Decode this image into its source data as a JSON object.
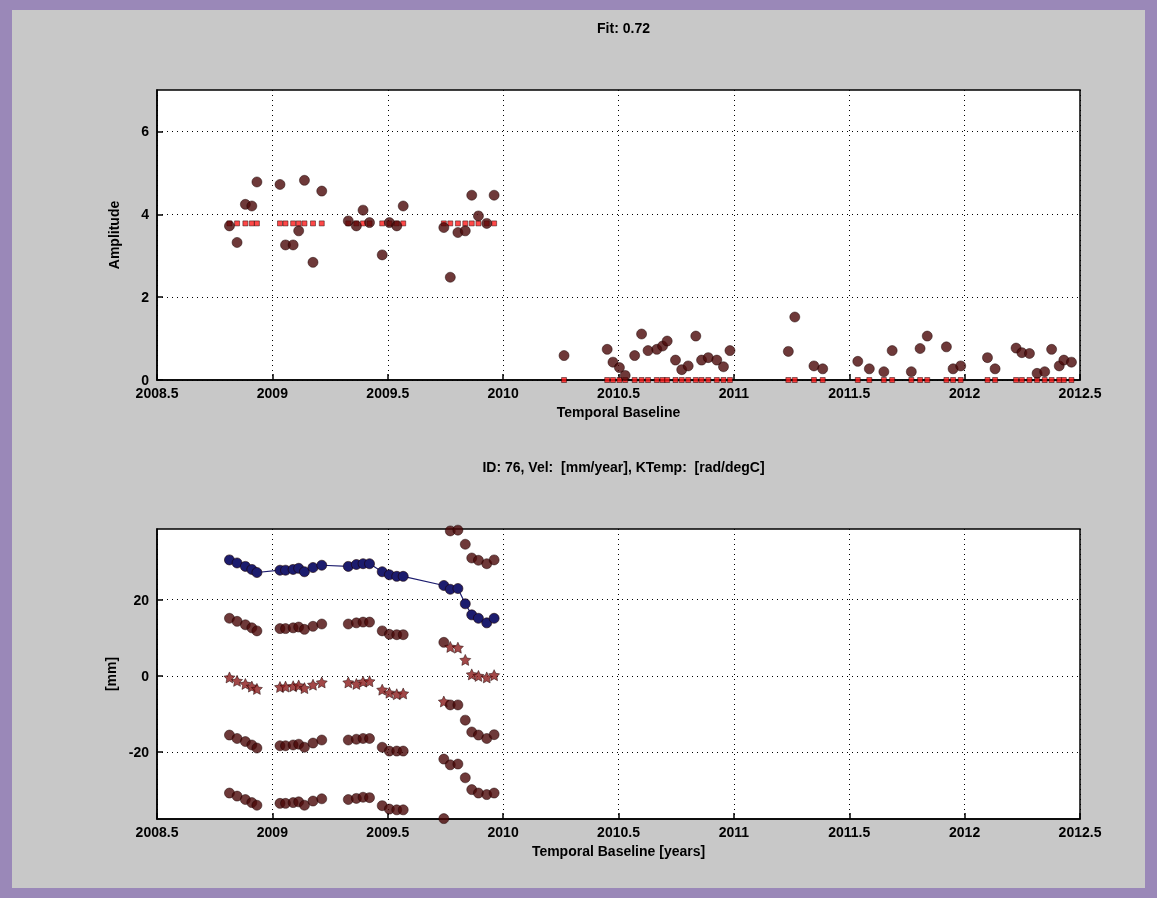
{
  "chart_data": [
    {
      "type": "scatter",
      "title": "Fit: 0.72",
      "xlabel": "Temporal Baseline",
      "ylabel": "Amplitude",
      "xlim": [
        2008.5,
        2012.5
      ],
      "xticks": [
        2008.5,
        2009,
        2009.5,
        2010,
        2010.5,
        2011,
        2011.5,
        2012,
        2012.5
      ],
      "ylim": [
        0,
        7
      ],
      "yticks": [
        0,
        2,
        4,
        6
      ],
      "grid": true,
      "x": [
        2008.814,
        2008.847,
        2008.883,
        2008.911,
        2008.933,
        2009.033,
        2009.057,
        2009.09,
        2009.114,
        2009.139,
        2009.176,
        2009.214,
        2009.329,
        2009.364,
        2009.393,
        2009.421,
        2009.476,
        2009.507,
        2009.539,
        2009.567,
        2009.743,
        2009.771,
        2009.804,
        2009.836,
        2009.864,
        2009.893,
        2009.929,
        2009.961,
        2010.264,
        2010.451,
        2010.476,
        2010.504,
        2010.529,
        2010.57,
        2010.6,
        2010.628,
        2010.666,
        2010.691,
        2010.711,
        2010.747,
        2010.774,
        2010.802,
        2010.835,
        2010.86,
        2010.889,
        2010.926,
        2010.955,
        2010.983,
        2011.236,
        2011.264,
        2011.347,
        2011.385,
        2011.537,
        2011.587,
        2011.65,
        2011.686,
        2011.769,
        2011.807,
        2011.838,
        2011.921,
        2011.95,
        2011.983,
        2012.099,
        2012.132,
        2012.223,
        2012.248,
        2012.281,
        2012.314,
        2012.347,
        2012.377,
        2012.41,
        2012.43,
        2012.463
      ],
      "series": [
        {
          "marker": "square",
          "color": "#ff1a1a",
          "values": [
            3.78,
            3.78,
            3.78,
            3.78,
            3.78,
            3.78,
            3.78,
            3.78,
            3.78,
            3.78,
            3.78,
            3.78,
            3.78,
            3.78,
            3.78,
            3.78,
            3.78,
            3.78,
            3.78,
            3.78,
            3.78,
            3.78,
            3.78,
            3.78,
            3.78,
            3.78,
            3.78,
            3.78,
            0,
            0,
            0,
            0,
            0,
            0,
            0,
            0,
            0,
            0,
            0,
            0,
            0,
            0,
            0,
            0,
            0,
            0,
            0,
            0,
            0,
            0,
            0,
            0,
            0,
            0,
            0,
            0,
            0,
            0,
            0,
            0,
            0,
            0,
            0,
            0,
            0,
            0,
            0,
            0,
            0,
            0,
            0,
            0,
            0
          ]
        },
        {
          "marker": "circle",
          "color": "#4a0808",
          "values": [
            3.72,
            3.32,
            4.24,
            4.2,
            4.78,
            4.72,
            3.26,
            3.26,
            3.6,
            4.82,
            2.84,
            4.56,
            3.84,
            3.72,
            4.1,
            3.8,
            3.02,
            3.8,
            3.72,
            4.2,
            3.68,
            2.48,
            3.56,
            3.6,
            4.46,
            3.96,
            3.78,
            4.46,
            0.59,
            0.74,
            0.43,
            0.3,
            0.11,
            0.59,
            1.11,
            0.71,
            0.74,
            0.82,
            0.94,
            0.48,
            0.25,
            0.34,
            1.06,
            0.48,
            0.54,
            0.48,
            0.32,
            0.71,
            0.69,
            1.52,
            0.34,
            0.27,
            0.45,
            0.27,
            0.2,
            0.71,
            0.2,
            0.76,
            1.06,
            0.8,
            0.27,
            0.34,
            0.54,
            0.27,
            0.77,
            0.66,
            0.64,
            0.16,
            0.2,
            0.74,
            0.34,
            0.48,
            0.43
          ]
        }
      ]
    },
    {
      "type": "scatter",
      "title": "ID: 76, Vel:  [mm/year], KTemp:  [rad/degC]",
      "xlabel": "Temporal Baseline [years]",
      "ylabel": "[mm]",
      "xlim": [
        2008.5,
        2012.5
      ],
      "xticks": [
        2008.5,
        2009,
        2009.5,
        2010,
        2010.5,
        2011,
        2011.5,
        2012,
        2012.5
      ],
      "ylim": [
        -37.5,
        38.5
      ],
      "yticks": [
        -20,
        0,
        20
      ],
      "grid": true,
      "x": [
        2008.814,
        2008.847,
        2008.883,
        2008.911,
        2008.933,
        2009.033,
        2009.057,
        2009.09,
        2009.114,
        2009.139,
        2009.176,
        2009.214,
        2009.329,
        2009.364,
        2009.393,
        2009.421,
        2009.476,
        2009.507,
        2009.539,
        2009.567,
        2009.743,
        2009.771,
        2009.804,
        2009.836,
        2009.864,
        2009.893,
        2009.929,
        2009.961
      ],
      "series": [
        {
          "type": "line",
          "marker": "circle",
          "line_style": "solid",
          "color": "#1c1c6e",
          "values": [
            30.4,
            29.6,
            28.7,
            27.9,
            27.1,
            27.7,
            27.7,
            27.9,
            28.2,
            27.3,
            28.4,
            29.0,
            28.7,
            29.2,
            29.4,
            29.4,
            27.3,
            26.5,
            26.1,
            26.1,
            23.7,
            22.7,
            22.9,
            18.9,
            16.0,
            15.1,
            13.9,
            15.1
          ]
        },
        {
          "marker": "circle",
          "color": "#4a0808",
          "values": [
            null,
            null,
            null,
            null,
            null,
            null,
            null,
            null,
            null,
            null,
            null,
            null,
            null,
            null,
            null,
            null,
            null,
            null,
            null,
            null,
            null,
            38.0,
            38.2,
            34.5,
            30.9,
            30.3,
            29.4,
            30.4
          ]
        },
        {
          "marker": "circle",
          "color": "#4a0808",
          "values": [
            15.1,
            14.3,
            13.4,
            12.6,
            11.8,
            12.4,
            12.4,
            12.6,
            12.8,
            12.2,
            13.0,
            13.6,
            13.6,
            13.9,
            14.1,
            14.1,
            11.8,
            10.9,
            10.8,
            10.8,
            8.8,
            null,
            null,
            null,
            null,
            null,
            null,
            null
          ]
        },
        {
          "marker": "star",
          "color": "#8b1a1a",
          "values": [
            -0.4,
            -1.3,
            -2.1,
            -2.8,
            -3.4,
            -2.9,
            -2.8,
            -2.7,
            -2.5,
            -3.2,
            -2.3,
            -1.7,
            -1.7,
            -2.1,
            -1.5,
            -1.4,
            -3.6,
            -4.4,
            -4.8,
            -4.6,
            -6.7,
            7.6,
            7.4,
            4.2,
            0.4,
            0,
            -0.4,
            0.2
          ]
        },
        {
          "marker": "circle",
          "color": "#4a0808",
          "values": [
            -15.5,
            -16.4,
            -17.2,
            -18.1,
            -18.9,
            -18.3,
            -18.3,
            -18.1,
            -17.9,
            -18.7,
            -17.6,
            -16.8,
            -16.8,
            -16.6,
            -16.4,
            -16.4,
            -18.7,
            -19.7,
            -19.7,
            -19.7,
            -21.8,
            -7.6,
            -7.6,
            -11.6,
            -14.7,
            -15.5,
            -16.4,
            -15.4
          ]
        },
        {
          "marker": "circle",
          "color": "#4a0808",
          "values": [
            -30.7,
            -31.5,
            -32.4,
            -33.2,
            -33.9,
            -33.4,
            -33.4,
            -33.2,
            -33.0,
            -33.9,
            -32.8,
            -32.2,
            -32.4,
            -32.1,
            -31.8,
            -31.9,
            -34.0,
            -34.9,
            -35.1,
            -35.1,
            -37.4,
            -23.3,
            -23.1,
            -26.7,
            -29.8,
            -30.7,
            -31.1,
            -30.7
          ]
        }
      ]
    }
  ]
}
